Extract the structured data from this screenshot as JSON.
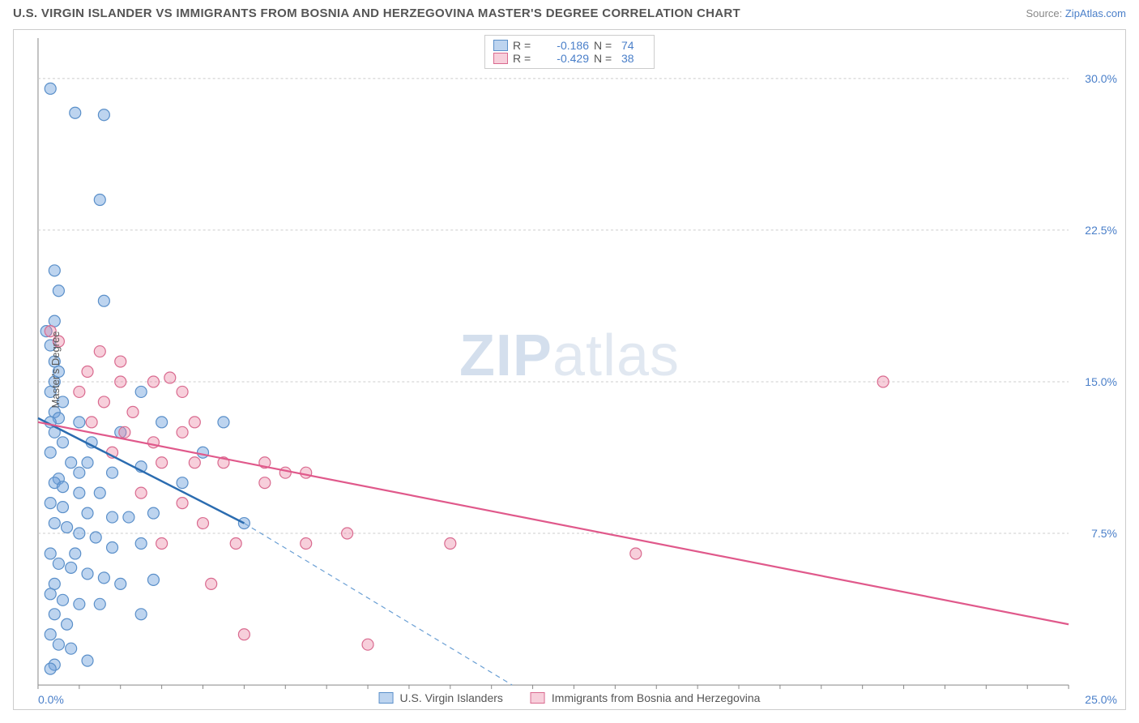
{
  "title": "U.S. VIRGIN ISLANDER VS IMMIGRANTS FROM BOSNIA AND HERZEGOVINA MASTER'S DEGREE CORRELATION CHART",
  "source_label": "Source: ",
  "source_name": "ZipAtlas.com",
  "watermark_zip": "ZIP",
  "watermark_atlas": "atlas",
  "ylabel": "Master's Degree",
  "chart": {
    "type": "scatter",
    "xlim": [
      0,
      25
    ],
    "ylim": [
      0,
      32
    ],
    "y_ticks": [
      7.5,
      15.0,
      22.5,
      30.0
    ],
    "y_tick_labels": [
      "7.5%",
      "15.0%",
      "22.5%",
      "30.0%"
    ],
    "x_tick_min_label": "0.0%",
    "x_tick_max_label": "25.0%",
    "grid_color": "#cccccc",
    "grid_dash": "3,3",
    "background": "#ffffff",
    "series": [
      {
        "name": "U.S. Virgin Islanders",
        "color_fill": "rgba(108,160,220,0.45)",
        "color_stroke": "#5a8fc9",
        "R": "-0.186",
        "N": "74",
        "points": [
          [
            0.3,
            29.5
          ],
          [
            0.9,
            28.3
          ],
          [
            1.6,
            28.2
          ],
          [
            1.5,
            24.0
          ],
          [
            0.4,
            20.5
          ],
          [
            0.5,
            19.5
          ],
          [
            1.6,
            19.0
          ],
          [
            0.4,
            18.0
          ],
          [
            0.2,
            17.5
          ],
          [
            0.3,
            16.8
          ],
          [
            0.4,
            16.0
          ],
          [
            0.5,
            15.5
          ],
          [
            0.4,
            15.0
          ],
          [
            0.3,
            14.5
          ],
          [
            0.6,
            14.0
          ],
          [
            0.4,
            13.5
          ],
          [
            0.5,
            13.2
          ],
          [
            0.3,
            13.0
          ],
          [
            1.0,
            13.0
          ],
          [
            2.5,
            14.5
          ],
          [
            3.0,
            13.0
          ],
          [
            4.5,
            13.0
          ],
          [
            0.4,
            12.5
          ],
          [
            0.6,
            12.0
          ],
          [
            0.3,
            11.5
          ],
          [
            0.8,
            11.0
          ],
          [
            1.2,
            11.0
          ],
          [
            1.8,
            10.5
          ],
          [
            0.5,
            10.2
          ],
          [
            2.5,
            10.8
          ],
          [
            0.4,
            10.0
          ],
          [
            0.6,
            9.8
          ],
          [
            1.0,
            9.5
          ],
          [
            1.5,
            9.5
          ],
          [
            0.3,
            9.0
          ],
          [
            0.6,
            8.8
          ],
          [
            1.2,
            8.5
          ],
          [
            1.8,
            8.3
          ],
          [
            2.2,
            8.3
          ],
          [
            2.8,
            8.5
          ],
          [
            5.0,
            8.0
          ],
          [
            0.4,
            8.0
          ],
          [
            0.7,
            7.8
          ],
          [
            1.0,
            7.5
          ],
          [
            1.4,
            7.3
          ],
          [
            1.8,
            6.8
          ],
          [
            2.5,
            7.0
          ],
          [
            0.3,
            6.5
          ],
          [
            0.5,
            6.0
          ],
          [
            0.8,
            5.8
          ],
          [
            1.2,
            5.5
          ],
          [
            1.6,
            5.3
          ],
          [
            0.4,
            5.0
          ],
          [
            2.0,
            5.0
          ],
          [
            2.8,
            5.2
          ],
          [
            0.3,
            4.5
          ],
          [
            0.6,
            4.2
          ],
          [
            1.0,
            4.0
          ],
          [
            1.5,
            4.0
          ],
          [
            2.5,
            3.5
          ],
          [
            0.4,
            3.5
          ],
          [
            0.7,
            3.0
          ],
          [
            0.3,
            2.5
          ],
          [
            0.5,
            2.0
          ],
          [
            0.8,
            1.8
          ],
          [
            1.2,
            1.2
          ],
          [
            0.4,
            1.0
          ],
          [
            0.3,
            0.8
          ],
          [
            1.0,
            10.5
          ],
          [
            1.3,
            12.0
          ],
          [
            0.9,
            6.5
          ],
          [
            3.5,
            10.0
          ],
          [
            4.0,
            11.5
          ],
          [
            2.0,
            12.5
          ]
        ],
        "trend": {
          "x1": 0,
          "y1": 13.2,
          "x2": 5.0,
          "y2": 8.0,
          "ext_x2": 11.5,
          "ext_y2": 0
        },
        "line_color": "#2b6cb0",
        "line_width": 2.5,
        "dash_color": "#6a9fd4"
      },
      {
        "name": "Immigrants from Bosnia and Herzegovina",
        "color_fill": "rgba(235,130,160,0.38)",
        "color_stroke": "#d96a8f",
        "R": "-0.429",
        "N": "38",
        "points": [
          [
            0.3,
            17.5
          ],
          [
            0.5,
            17.0
          ],
          [
            1.5,
            16.5
          ],
          [
            2.0,
            16.0
          ],
          [
            1.2,
            15.5
          ],
          [
            2.0,
            15.0
          ],
          [
            2.8,
            15.0
          ],
          [
            3.2,
            15.2
          ],
          [
            1.0,
            14.5
          ],
          [
            1.6,
            14.0
          ],
          [
            2.3,
            13.5
          ],
          [
            3.5,
            14.5
          ],
          [
            1.3,
            13.0
          ],
          [
            2.1,
            12.5
          ],
          [
            2.8,
            12.0
          ],
          [
            3.5,
            12.5
          ],
          [
            1.8,
            11.5
          ],
          [
            3.0,
            11.0
          ],
          [
            3.8,
            11.0
          ],
          [
            4.5,
            11.0
          ],
          [
            5.5,
            11.0
          ],
          [
            6.0,
            10.5
          ],
          [
            2.5,
            9.5
          ],
          [
            3.5,
            9.0
          ],
          [
            4.0,
            8.0
          ],
          [
            4.8,
            7.0
          ],
          [
            5.5,
            10.0
          ],
          [
            6.5,
            10.5
          ],
          [
            7.5,
            7.5
          ],
          [
            6.5,
            7.0
          ],
          [
            10.0,
            7.0
          ],
          [
            14.5,
            6.5
          ],
          [
            4.2,
            5.0
          ],
          [
            5.0,
            2.5
          ],
          [
            8.0,
            2.0
          ],
          [
            3.0,
            7.0
          ],
          [
            20.5,
            15.0
          ],
          [
            3.8,
            13.0
          ]
        ],
        "trend": {
          "x1": 0,
          "y1": 13.0,
          "x2": 25,
          "y2": 3.0
        },
        "line_color": "#e0598b",
        "line_width": 2.2
      }
    ],
    "legend_top_swatches": [
      {
        "fill": "rgba(108,160,220,0.45)",
        "stroke": "#5a8fc9"
      },
      {
        "fill": "rgba(235,130,160,0.38)",
        "stroke": "#d96a8f"
      }
    ],
    "value_color": "#4a7fc9",
    "marker_radius": 7,
    "marker_stroke_width": 1.2
  }
}
